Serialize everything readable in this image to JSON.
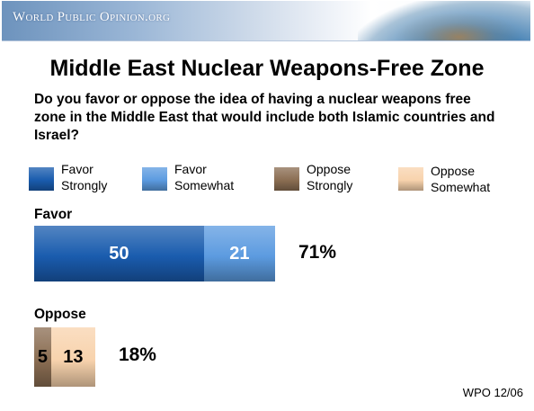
{
  "header": {
    "brand": "World Public Opinion.org"
  },
  "chart_data": {
    "type": "bar",
    "title": "Middle East Nuclear Weapons-Free Zone",
    "subtitle": "Do you favor or oppose the idea of having a nuclear weapons free zone in the Middle East that would include both Islamic countries and Israel?",
    "series": [
      {
        "name": "Favor\nStrongly",
        "color": "#1a5cae"
      },
      {
        "name": "Favor\nSomewhat",
        "color": "#5c9be0"
      },
      {
        "name": "Oppose\nStrongly",
        "color": "#8b6e53"
      },
      {
        "name": "Oppose\nSomewhat",
        "color": "#f8d3ad"
      }
    ],
    "groups": [
      {
        "label": "Favor",
        "total": "71%",
        "segments": [
          {
            "series": 0,
            "value": 50
          },
          {
            "series": 1,
            "value": 21
          }
        ]
      },
      {
        "label": "Oppose",
        "total": "18%",
        "segments": [
          {
            "series": 2,
            "value": 5
          },
          {
            "series": 3,
            "value": 13
          }
        ]
      }
    ],
    "xlim": [
      0,
      71
    ]
  },
  "footer": {
    "source": "WPO 12/06"
  }
}
